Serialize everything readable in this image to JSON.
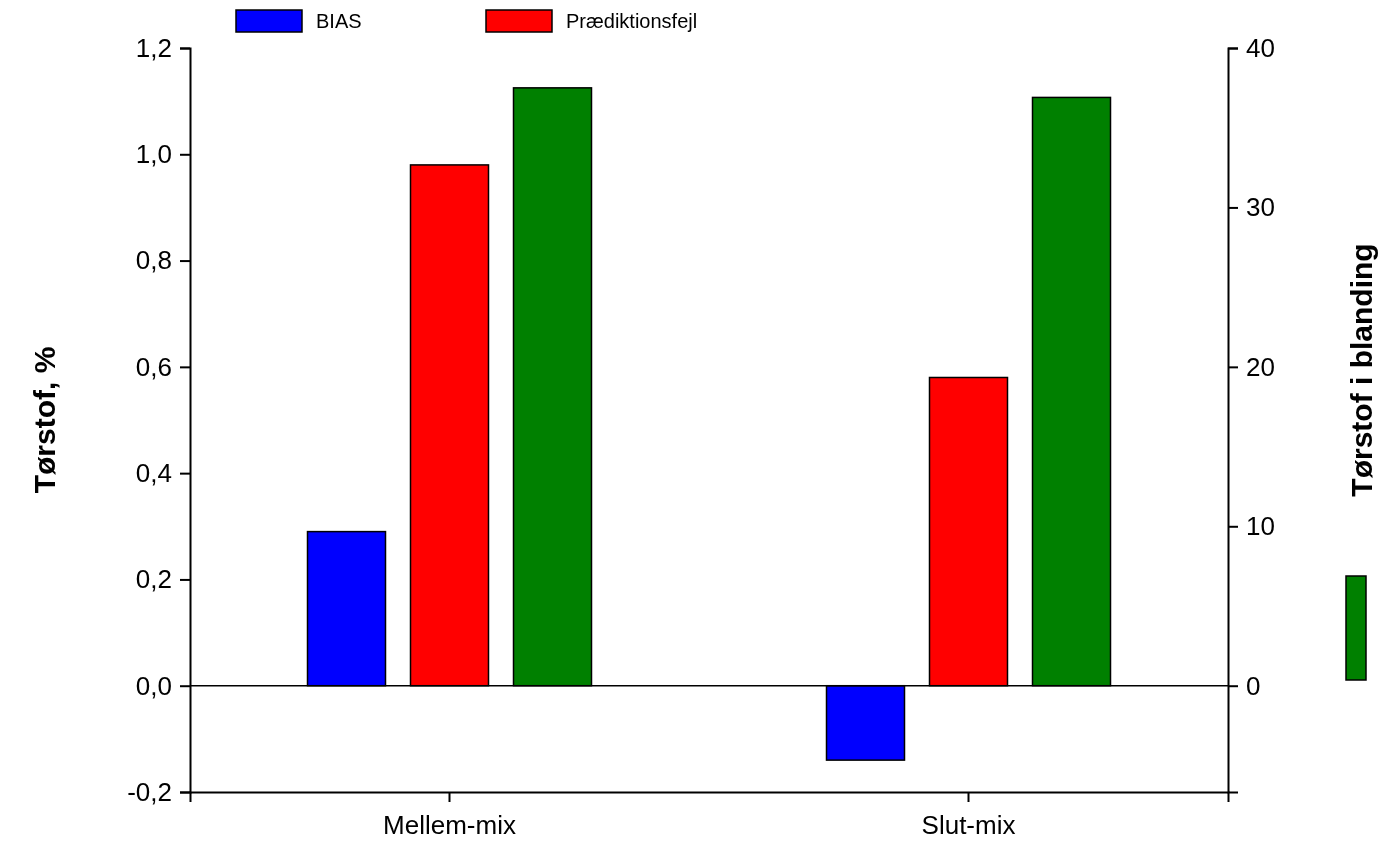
{
  "chart_data": {
    "type": "bar",
    "categories": [
      "Mellem-mix",
      "Slut-mix"
    ],
    "series": [
      {
        "name": "BIAS",
        "color": "#0000ff",
        "values": [
          0.29,
          -0.14
        ]
      },
      {
        "name": "Prædiktionsfejl",
        "color": "#ff0000",
        "values": [
          0.98,
          0.58
        ]
      },
      {
        "color": "#008000",
        "values": [
          37.5,
          36.9
        ],
        "axis": "y2"
      }
    ],
    "ylabel": "Tørstof, %",
    "y2label": "Tørstof i blanding",
    "ylim": [
      -0.2,
      1.2
    ],
    "yticks": [
      {
        "value": -0.2,
        "label": "-0,2"
      },
      {
        "value": 0,
        "label": "0,0"
      },
      {
        "value": 0.2,
        "label": "0,2"
      },
      {
        "value": 0.4,
        "label": "0,4"
      },
      {
        "value": 0.6,
        "label": "0,6"
      },
      {
        "value": 0.8,
        "label": "0,8"
      },
      {
        "value": 1,
        "label": "1,0"
      },
      {
        "value": 1.2,
        "label": "1,2"
      }
    ],
    "y2lim": [
      -6.667,
      40
    ],
    "y2ticks": [
      0,
      10,
      20,
      30,
      40
    ],
    "ref_lines": [
      {
        "axis": "y",
        "value": 0
      }
    ],
    "legend": "top",
    "grid": false
  }
}
